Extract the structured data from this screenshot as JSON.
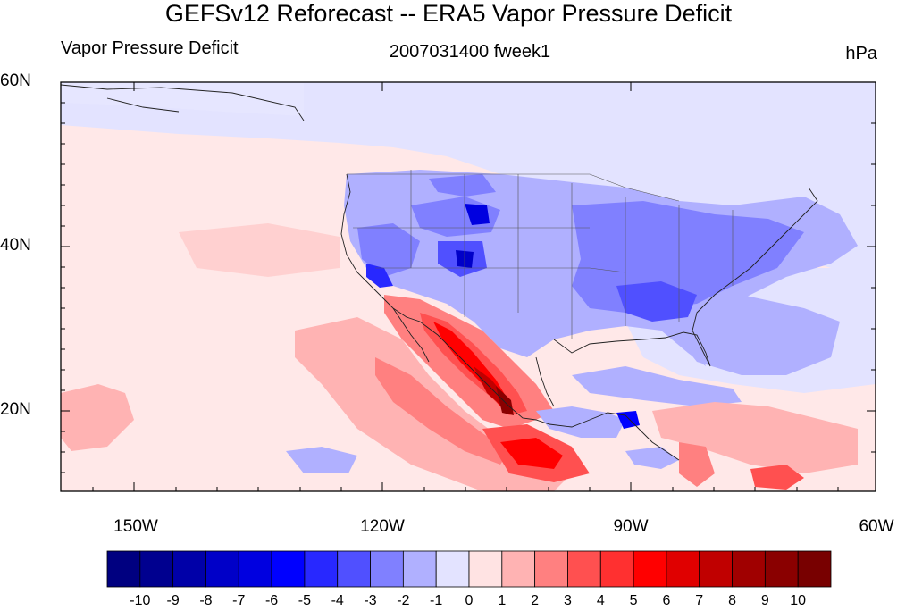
{
  "title": "GEFSv12 Reforecast -- ERA5 Vapor Pressure Deficit",
  "subtitle_left": "Vapor Pressure Deficit",
  "subtitle_center": "2007031400 fweek1",
  "subtitle_right": "hPa",
  "lat_labels": [
    "60N",
    "40N",
    "20N"
  ],
  "lon_labels": [
    "150W",
    "120W",
    "90W",
    "60W"
  ],
  "colorbar": {
    "ticks": [
      "-10",
      "-9",
      "-8",
      "-7",
      "-6",
      "-5",
      "-4",
      "-3",
      "-2",
      "-1",
      "0",
      "1",
      "2",
      "3",
      "4",
      "5",
      "6",
      "7",
      "8",
      "9",
      "10"
    ],
    "colors": [
      "#000080",
      "#00008f",
      "#0000a8",
      "#0000c8",
      "#0000e0",
      "#0000ff",
      "#2828ff",
      "#5050ff",
      "#8080ff",
      "#b0b0ff",
      "#e3e3ff",
      "#ffe3e3",
      "#ffb3b3",
      "#ff8080",
      "#ff5050",
      "#ff3030",
      "#ff0000",
      "#e00000",
      "#c00000",
      "#a00000",
      "#8a0000",
      "#780000"
    ]
  },
  "colors": {
    "ocean_bg": "#ffe8e8",
    "land_neutral": "#e3e3ff",
    "blue_mid": "#8080ff",
    "blue_strong": "#0000ff",
    "red_mid": "#ff8080",
    "red_strong": "#ff0000",
    "red_dark": "#8a0000"
  }
}
